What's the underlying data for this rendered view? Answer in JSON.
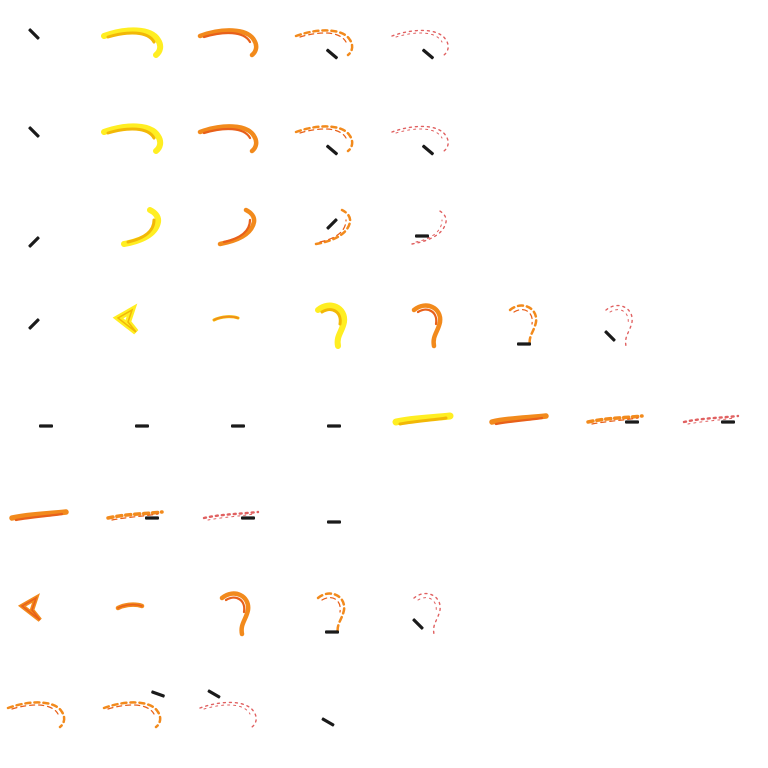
{
  "sprite_sheet": {
    "grid": {
      "cols": 8,
      "rows": 8
    },
    "palette": {
      "blade": "#1a1a1a",
      "flash": "#ffee22",
      "core": "#f2b807",
      "flame": "#f28a1c",
      "ember": "#e8601a",
      "fade": "#e06060"
    },
    "rows": [
      {
        "name": "slash-top-right",
        "frames": [
          "blade",
          "arc-yellow",
          "arc-orange",
          "arc-orange-fade",
          "arc-red-fade"
        ]
      },
      {
        "name": "slash-top-flat",
        "frames": [
          "blade",
          "arc-yellow",
          "arc-orange",
          "arc-orange-fade",
          "arc-red-fade"
        ]
      },
      {
        "name": "slash-upward",
        "frames": [
          "blade",
          "hook-yellow",
          "hook-orange",
          "hook-orange-fade",
          "hook-red-fade"
        ]
      },
      {
        "name": "slash-spin",
        "frames": [
          "blade",
          "spark-yellow",
          "spark-small",
          "spin-yellow",
          "spin-orange",
          "spin-orange-fade",
          "spin-red-fade"
        ]
      },
      {
        "name": "thrust-horizontal",
        "frames": [
          "blade-flat",
          "blade-flat",
          "blade-flat",
          "blade-flat",
          "streak-yellow",
          "streak-orange",
          "streak-orange-fade",
          "streak-red-fade"
        ]
      },
      {
        "name": "thrust-fade",
        "frames": [
          "streak-orange",
          "streak-orange-fade",
          "streak-red-fade",
          "blade-flat"
        ]
      },
      {
        "name": "slash-spin-orange",
        "frames": [
          "spark-orange",
          "spark-orange-small",
          "spin-orange",
          "spin-orange-fade",
          "spin-red-fade"
        ]
      },
      {
        "name": "slash-flat-fade",
        "frames": [
          "arc-orange-fade",
          "arc-orange-fade",
          "arc-red-fade",
          "blade"
        ]
      }
    ]
  }
}
